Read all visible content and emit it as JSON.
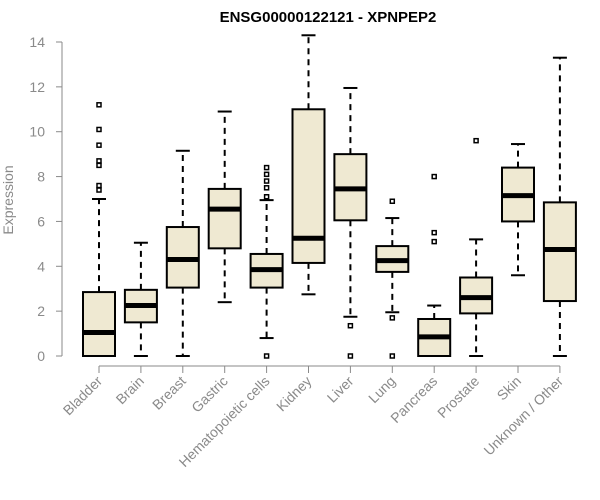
{
  "chart_data": {
    "type": "boxplot",
    "title": "ENSG00000122121 - XPNPEP2",
    "ylabel": "Expression",
    "ylim": [
      0,
      14
    ],
    "yticks": [
      0,
      2,
      4,
      6,
      8,
      10,
      12,
      14
    ],
    "categories": [
      "Bladder",
      "Brain",
      "Breast",
      "Gastric",
      "Hematopoietic cells",
      "Kidney",
      "Liver",
      "Lung",
      "Pancreas",
      "Prostate",
      "Skin",
      "Unknown / Other"
    ],
    "boxes": [
      {
        "min": 0,
        "q1": 0,
        "median": 1.05,
        "q3": 2.85,
        "max": 7.0,
        "outliers": [
          7.4,
          7.6,
          8.5,
          8.7,
          9.4,
          10.1,
          11.2
        ]
      },
      {
        "min": 0,
        "q1": 1.5,
        "median": 2.25,
        "q3": 2.95,
        "max": 5.05,
        "outliers": []
      },
      {
        "min": 0,
        "q1": 3.05,
        "median": 4.3,
        "q3": 5.75,
        "max": 9.15,
        "outliers": []
      },
      {
        "min": 2.4,
        "q1": 4.8,
        "median": 6.55,
        "q3": 7.45,
        "max": 10.9,
        "outliers": []
      },
      {
        "min": 0.8,
        "q1": 3.05,
        "median": 3.85,
        "q3": 4.55,
        "max": 6.95,
        "outliers": [
          0,
          7.1,
          7.5,
          7.8,
          8.1,
          8.4
        ]
      },
      {
        "min": 2.75,
        "q1": 4.15,
        "median": 5.25,
        "q3": 11.0,
        "max": 14.3,
        "outliers": []
      },
      {
        "min": 1.75,
        "q1": 6.05,
        "median": 7.45,
        "q3": 9.0,
        "max": 11.95,
        "outliers": [
          0,
          1.35
        ]
      },
      {
        "min": 1.95,
        "q1": 3.75,
        "median": 4.25,
        "q3": 4.9,
        "max": 6.15,
        "outliers": [
          0,
          1.7,
          6.9
        ]
      },
      {
        "min": 0,
        "q1": 0,
        "median": 0.85,
        "q3": 1.65,
        "max": 2.25,
        "outliers": [
          5.1,
          5.5,
          8.0
        ]
      },
      {
        "min": 0,
        "q1": 1.9,
        "median": 2.6,
        "q3": 3.5,
        "max": 5.2,
        "outliers": [
          9.6
        ]
      },
      {
        "min": 3.6,
        "q1": 6.0,
        "median": 7.15,
        "q3": 8.4,
        "max": 9.45,
        "outliers": []
      },
      {
        "min": 0,
        "q1": 2.45,
        "median": 4.75,
        "q3": 6.85,
        "max": 13.3,
        "outliers": []
      }
    ],
    "box_fill": "#efe9d2",
    "line_color": "#000000",
    "axis_color": "#8a8a8a",
    "grid": false,
    "legend": false
  }
}
